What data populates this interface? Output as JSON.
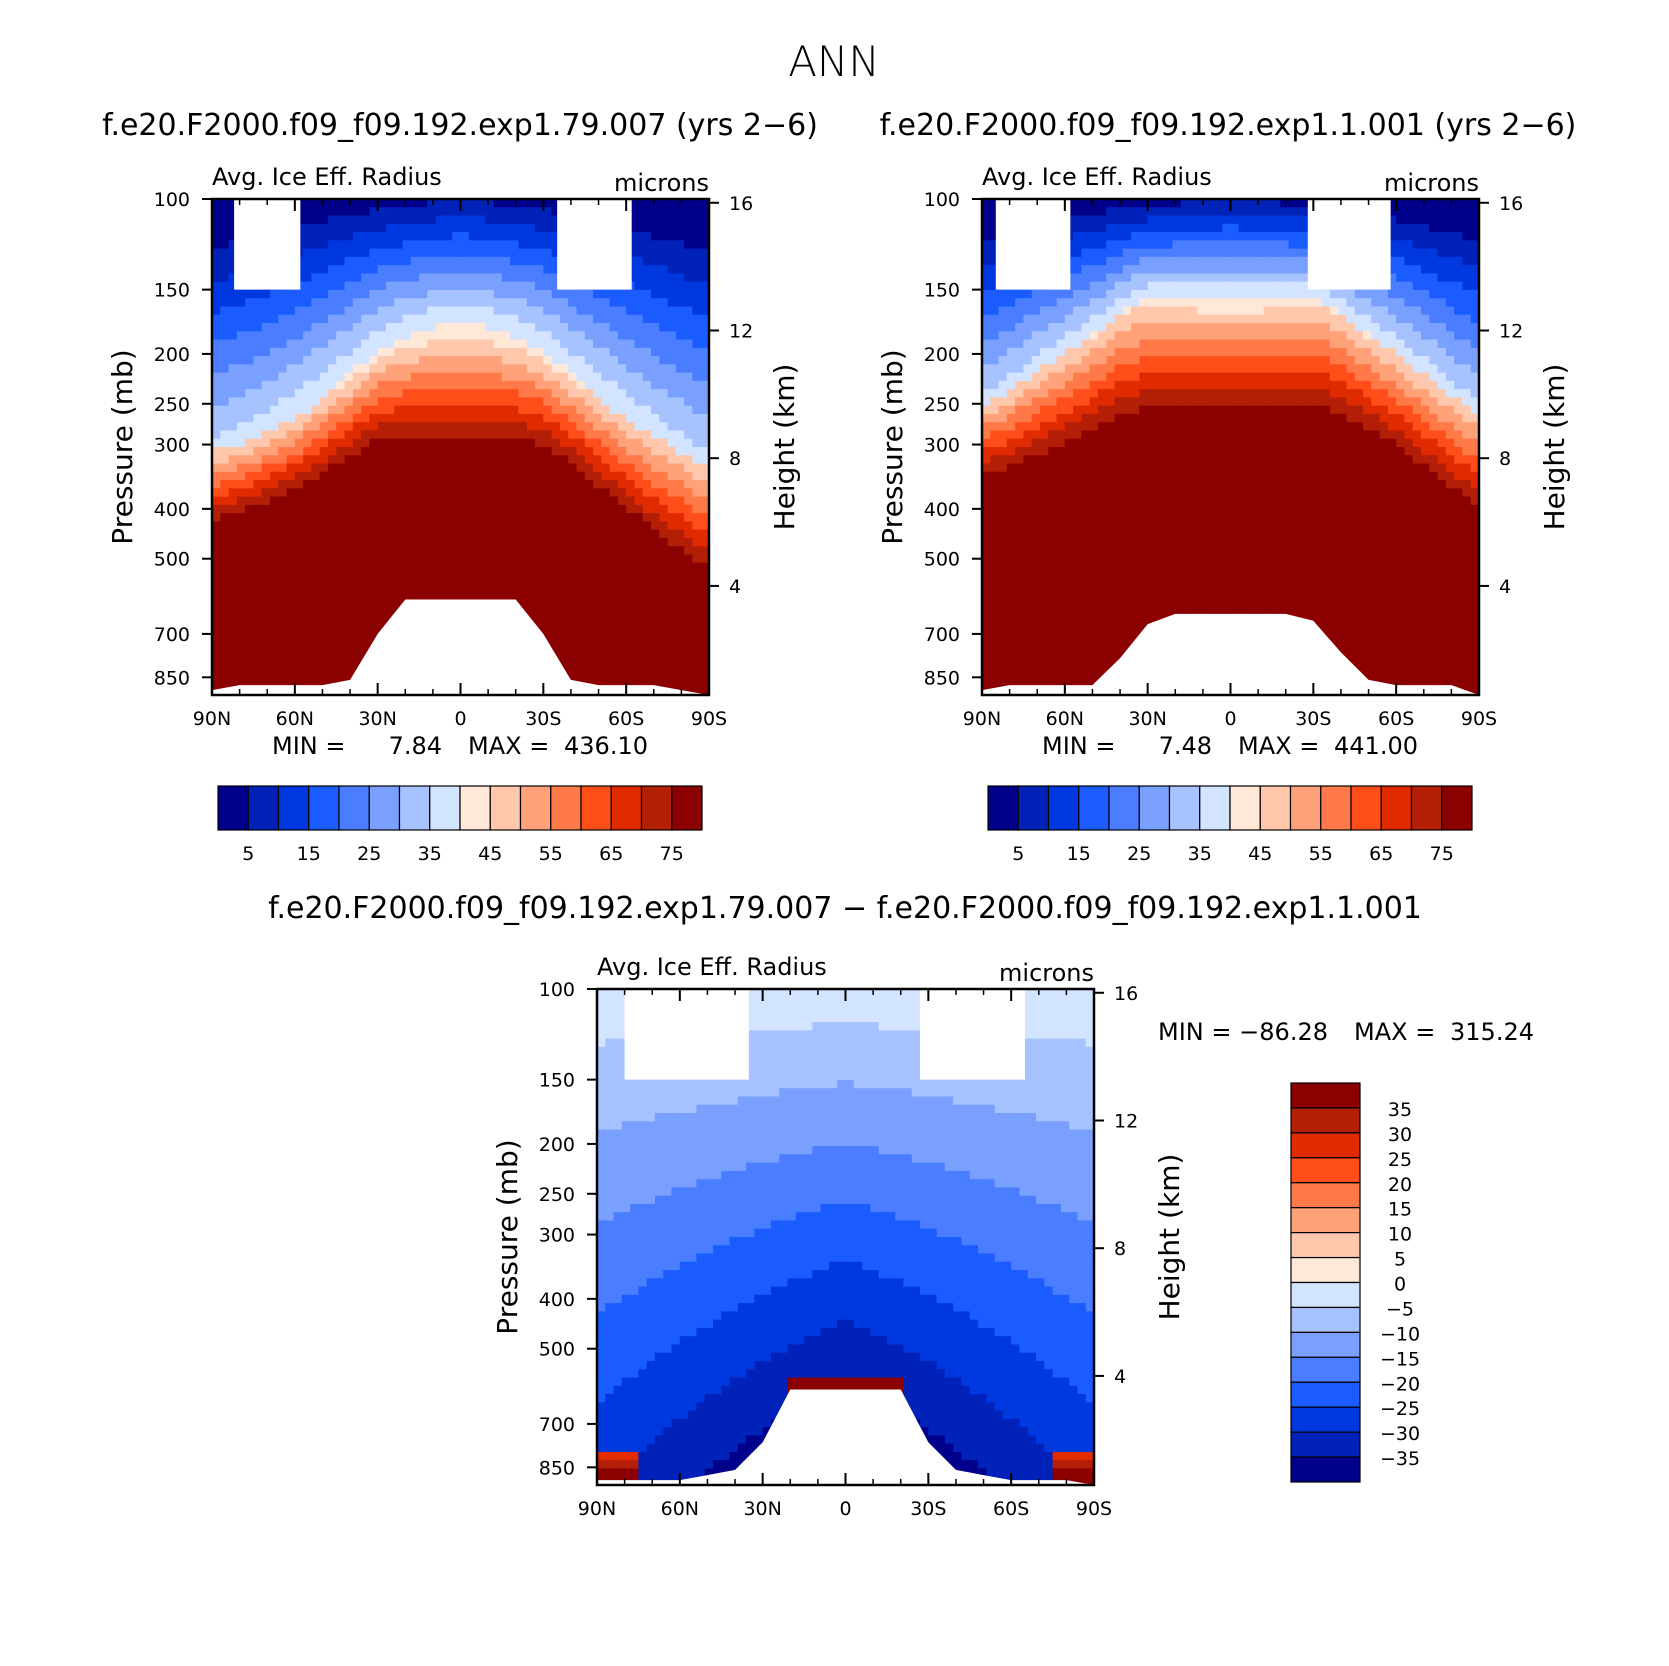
{
  "figure_title": "ANN",
  "colors": {
    "abs": [
      "#00008b",
      "#0022b8",
      "#0038e0",
      "#1a5cff",
      "#4a7dff",
      "#7aa0ff",
      "#a6c2ff",
      "#d2e4ff",
      "#ffe8d8",
      "#ffc8ac",
      "#ffa27a",
      "#ff7a48",
      "#ff4e1a",
      "#e02a00",
      "#b21e06",
      "#8b0000"
    ],
    "diff": [
      "#00008b",
      "#0022b8",
      "#0038e0",
      "#1a5cff",
      "#4a7dff",
      "#7aa0ff",
      "#a6c2ff",
      "#d2e4ff",
      "#ffe8d8",
      "#ffc8ac",
      "#ffa27a",
      "#ff7a48",
      "#ff4e1a",
      "#e02a00",
      "#b21e06",
      "#8b0000"
    ]
  },
  "chart_data": [
    {
      "type": "heatmap",
      "title": "f.e20.F2000.f09_f09.192.exp1.79.007 (yrs 2−6)",
      "subtitle_left": "Avg. Ice Eff. Radius",
      "subtitle_right": "microns",
      "xlabel": "",
      "ylabel": "Pressure (mb)",
      "ylabel_right": "Height (km)",
      "x_ticks": [
        "90N",
        "60N",
        "30N",
        "0",
        "30S",
        "60S",
        "90S"
      ],
      "x_values": [
        90,
        60,
        30,
        0,
        -30,
        -60,
        -90
      ],
      "y_ticks": [
        "100",
        "150",
        "200",
        "250",
        "300",
        "400",
        "500",
        "700",
        "850"
      ],
      "y_values": [
        100,
        150,
        200,
        250,
        300,
        400,
        500,
        700,
        850
      ],
      "y_right_ticks": [
        "16",
        "12",
        "8",
        "4"
      ],
      "y_right_values": [
        16,
        12,
        8,
        4
      ],
      "ylim": [
        100,
        920
      ],
      "log_scale_y": true,
      "min_label": "MIN =",
      "min_value": "7.84",
      "max_label": "MAX =",
      "max_value": "436.10",
      "colorbar_levels": [
        0,
        5,
        10,
        15,
        20,
        25,
        30,
        35,
        40,
        45,
        50,
        55,
        60,
        65,
        70,
        75
      ],
      "colorbar_labels": [
        "5",
        "15",
        "25",
        "35",
        "45",
        "55",
        "65",
        "75"
      ],
      "profile": {
        "lat": [
          90,
          80,
          70,
          60,
          50,
          40,
          30,
          20,
          10,
          0,
          -10,
          -20,
          -30,
          -40,
          -50,
          -60,
          -70,
          -80,
          -90
        ],
        "p45": [
          310,
          300,
          285,
          268,
          245,
          225,
          205,
          195,
          190,
          190,
          190,
          195,
          205,
          225,
          245,
          268,
          290,
          310,
          330
        ],
        "p75": [
          420,
          405,
          385,
          365,
          340,
          315,
          292,
          290,
          290,
          290,
          290,
          292,
          300,
          325,
          360,
          395,
          440,
          480,
          520
        ],
        "gap_high_width": 105,
        "gap_low_width": 170
      },
      "missing_top": [
        [
          82,
          58
        ],
        [
          -35,
          -62
        ]
      ],
      "missing_surface": {
        "lat": [
          -90,
          -80,
          -70,
          -60,
          -50,
          -40,
          -30,
          -20,
          -10,
          0,
          10,
          20,
          30,
          40,
          50,
          60,
          70,
          80,
          90
        ],
        "p_top": [
          1000,
          900,
          880,
          880,
          880,
          860,
          700,
          600,
          600,
          600,
          600,
          600,
          700,
          860,
          880,
          880,
          880,
          880,
          900
        ]
      }
    },
    {
      "type": "heatmap",
      "title": "f.e20.F2000.f09_f09.192.exp1.1.001 (yrs 2−6)",
      "subtitle_left": "Avg. Ice Eff. Radius",
      "subtitle_right": "microns",
      "xlabel": "",
      "ylabel": "Pressure (mb)",
      "ylabel_right": "Height (km)",
      "x_ticks": [
        "90N",
        "60N",
        "30N",
        "0",
        "30S",
        "60S",
        "90S"
      ],
      "x_values": [
        90,
        60,
        30,
        0,
        -30,
        -60,
        -90
      ],
      "y_ticks": [
        "100",
        "150",
        "200",
        "250",
        "300",
        "400",
        "500",
        "700",
        "850"
      ],
      "y_values": [
        100,
        150,
        200,
        250,
        300,
        400,
        500,
        700,
        850
      ],
      "y_right_ticks": [
        "16",
        "12",
        "8",
        "4"
      ],
      "y_right_values": [
        16,
        12,
        8,
        4
      ],
      "ylim": [
        100,
        920
      ],
      "log_scale_y": true,
      "min_label": "MIN =",
      "min_value": "7.48",
      "max_label": "MAX =",
      "max_value": "441.00",
      "colorbar_levels": [
        0,
        5,
        10,
        15,
        20,
        25,
        30,
        35,
        40,
        45,
        50,
        55,
        60,
        65,
        70,
        75
      ],
      "colorbar_labels": [
        "5",
        "15",
        "25",
        "35",
        "45",
        "55",
        "65",
        "75"
      ],
      "profile": {
        "lat": [
          90,
          80,
          70,
          60,
          50,
          40,
          30,
          20,
          10,
          0,
          -10,
          -20,
          -30,
          -40,
          -50,
          -60,
          -70,
          -80,
          -90
        ],
        "p45": [
          250,
          235,
          215,
          200,
          185,
          170,
          160,
          162,
          165,
          165,
          165,
          162,
          160,
          170,
          185,
          200,
          220,
          240,
          260
        ],
        "p75": [
          345,
          330,
          315,
          298,
          280,
          262,
          255,
          250,
          250,
          252,
          250,
          248,
          252,
          262,
          280,
          300,
          330,
          360,
          400
        ],
        "gap_high_width": 105,
        "gap_low_width": 150
      },
      "missing_top": [
        [
          85,
          58
        ],
        [
          -28,
          -58
        ]
      ],
      "missing_surface": {
        "lat": [
          -90,
          -80,
          -70,
          -60,
          -50,
          -40,
          -30,
          -20,
          -10,
          0,
          10,
          20,
          30,
          40,
          50,
          60,
          70,
          80,
          90
        ],
        "p_top": [
          1000,
          880,
          880,
          880,
          860,
          760,
          660,
          640,
          640,
          640,
          640,
          640,
          670,
          780,
          880,
          880,
          880,
          880,
          900
        ]
      }
    },
    {
      "type": "heatmap",
      "title": "f.e20.F2000.f09_f09.192.exp1.79.007 − f.e20.F2000.f09_f09.192.exp1.1.001",
      "subtitle_left": "Avg. Ice Eff. Radius",
      "subtitle_right": "microns",
      "xlabel": "",
      "ylabel": "Pressure (mb)",
      "ylabel_right": "Height (km)",
      "x_ticks": [
        "90N",
        "60N",
        "30N",
        "0",
        "30S",
        "60S",
        "90S"
      ],
      "x_values": [
        90,
        60,
        30,
        0,
        -30,
        -60,
        -90
      ],
      "y_ticks": [
        "100",
        "150",
        "200",
        "250",
        "300",
        "400",
        "500",
        "700",
        "850"
      ],
      "y_values": [
        100,
        150,
        200,
        250,
        300,
        400,
        500,
        700,
        850
      ],
      "y_right_ticks": [
        "16",
        "12",
        "8",
        "4"
      ],
      "y_right_values": [
        16,
        12,
        8,
        4
      ],
      "ylim": [
        100,
        920
      ],
      "log_scale_y": true,
      "min_label": "MIN =",
      "min_value": "−86.28",
      "max_label": "MAX =",
      "max_value": "315.24",
      "colorbar_levels": [
        -40,
        -35,
        -30,
        -25,
        -20,
        -15,
        -10,
        -5,
        0,
        5,
        10,
        15,
        20,
        25,
        30,
        35
      ],
      "colorbar_labels": [
        "35",
        "30",
        "25",
        "20",
        "15",
        "10",
        "5",
        "0",
        "−5",
        "−10",
        "−15",
        "−20",
        "−25",
        "−30",
        "−35"
      ],
      "missing_top": [
        [
          80,
          35
        ],
        [
          -27,
          -65
        ]
      ],
      "missing_surface": {
        "lat": [
          -90,
          -80,
          -70,
          -60,
          -50,
          -40,
          -30,
          -20,
          -10,
          0,
          10,
          20,
          30,
          40,
          50,
          60,
          70,
          80,
          90
        ],
        "p_top": [
          1000,
          900,
          900,
          900,
          880,
          860,
          760,
          600,
          600,
          600,
          600,
          600,
          760,
          860,
          880,
          900,
          900,
          900,
          900
        ]
      }
    }
  ]
}
